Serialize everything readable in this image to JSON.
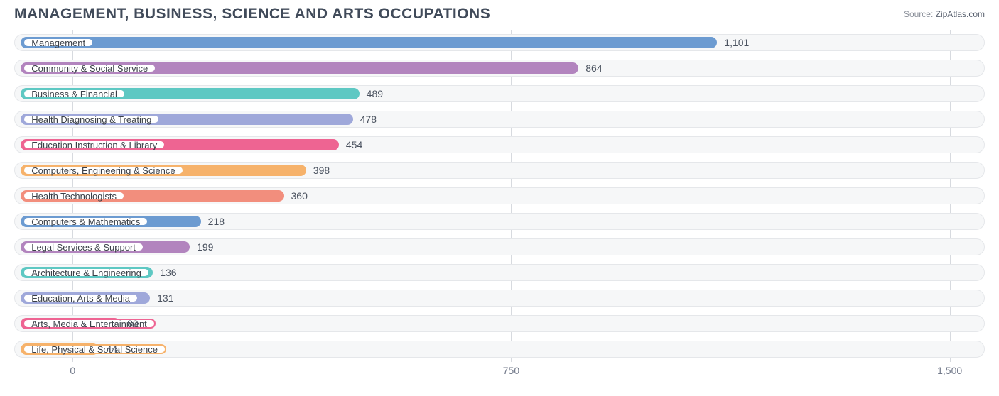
{
  "header": {
    "title": "MANAGEMENT, BUSINESS, SCIENCE AND ARTS OCCUPATIONS",
    "source_label": "Source:",
    "source_value": "ZipAtlas.com"
  },
  "chart": {
    "type": "bar-horizontal",
    "background_color": "#ffffff",
    "track_bg": "#f6f7f8",
    "track_border": "#e5e7ea",
    "grid_color": "#d7dadf",
    "text_color": "#4b5360",
    "title_color": "#414b5a",
    "x_axis": {
      "min": -100,
      "max": 1560,
      "ticks": [
        0,
        750,
        1500
      ],
      "tick_labels": [
        "0",
        "750",
        "1,500"
      ]
    },
    "label_origin": 0,
    "bar_start": -90,
    "palette": {
      "blue": "#6c9bd1",
      "purple": "#b284be",
      "teal": "#5ec8c3",
      "pink": "#ee6492",
      "orange": "#f6b26b",
      "salmon": "#f28e7d",
      "lav": "#9fa8da"
    },
    "rows": [
      {
        "label": "Management",
        "value": 1101,
        "value_label": "1,101",
        "color": "blue"
      },
      {
        "label": "Community & Social Service",
        "value": 864,
        "value_label": "864",
        "color": "purple"
      },
      {
        "label": "Business & Financial",
        "value": 489,
        "value_label": "489",
        "color": "teal"
      },
      {
        "label": "Health Diagnosing & Treating",
        "value": 478,
        "value_label": "478",
        "color": "lav"
      },
      {
        "label": "Education Instruction & Library",
        "value": 454,
        "value_label": "454",
        "color": "pink"
      },
      {
        "label": "Computers, Engineering & Science",
        "value": 398,
        "value_label": "398",
        "color": "orange"
      },
      {
        "label": "Health Technologists",
        "value": 360,
        "value_label": "360",
        "color": "salmon"
      },
      {
        "label": "Computers & Mathematics",
        "value": 218,
        "value_label": "218",
        "color": "blue"
      },
      {
        "label": "Legal Services & Support",
        "value": 199,
        "value_label": "199",
        "color": "purple"
      },
      {
        "label": "Architecture & Engineering",
        "value": 136,
        "value_label": "136",
        "color": "teal"
      },
      {
        "label": "Education, Arts & Media",
        "value": 131,
        "value_label": "131",
        "color": "lav"
      },
      {
        "label": "Arts, Media & Entertainment",
        "value": 80,
        "value_label": "80",
        "color": "pink"
      },
      {
        "label": "Life, Physical & Social Science",
        "value": 44,
        "value_label": "44",
        "color": "orange"
      }
    ]
  }
}
